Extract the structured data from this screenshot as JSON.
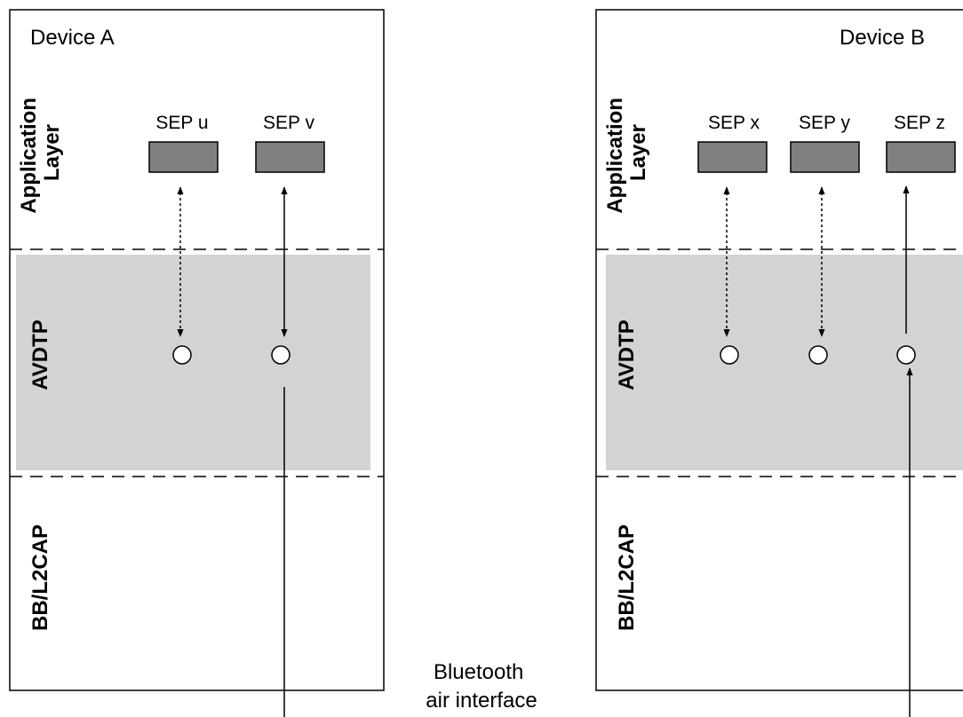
{
  "device_a": {
    "title": "Device A",
    "layers": {
      "application": [
        "Application",
        "Layer"
      ],
      "avdtp": "AVDTP",
      "baseband": "BB/L2CAP"
    },
    "seps": [
      {
        "label": "SEP u"
      },
      {
        "label": "SEP v"
      }
    ]
  },
  "device_b": {
    "title": "Device B",
    "layers": {
      "application": [
        "Application",
        "Layer"
      ],
      "avdtp": "AVDTP",
      "baseband": "BB/L2CAP"
    },
    "seps": [
      {
        "label": "SEP x"
      },
      {
        "label": "SEP y"
      },
      {
        "label": "SEP z"
      }
    ]
  },
  "air_interface": [
    "Bluetooth",
    "air interface"
  ],
  "colors": {
    "avdtp_band": "#d3d3d3",
    "sep_box": "#808080",
    "line": "#000000"
  }
}
